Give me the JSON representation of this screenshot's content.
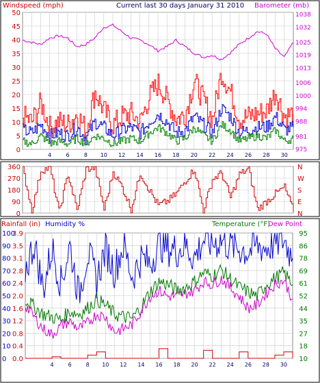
{
  "title": "Current last 30 days January 31 2010",
  "header": {
    "windspeed": "Windspeed (mph)",
    "barometer": "Barometer (mb)"
  },
  "panel3_header": {
    "rainfall": "Rainfall (in)",
    "humidity": "Humidity %",
    "temperature": "Temperature (°F)",
    "dewpoint": "Dew Point"
  },
  "colors": {
    "windspeed": "#ff0000",
    "gust": "#cc0000",
    "wind_avg": "#0000cc",
    "wind_low": "#008000",
    "barometer": "#cc00cc",
    "humidity": "#0000cc",
    "temperature": "#007700",
    "dewpoint": "#cc00cc",
    "rainfall": "#cc0000",
    "direction": "#cc0000",
    "grid": "#c8c8c8",
    "axis_text": "#000066"
  },
  "chart_data": [
    {
      "type": "line",
      "panel": "wind-barometer",
      "x_ticks": [
        4,
        6,
        8,
        10,
        12,
        14,
        16,
        18,
        20,
        22,
        24,
        26,
        28,
        30
      ],
      "xlim": [
        1,
        31
      ],
      "left_axis": {
        "label": "Windspeed (mph)",
        "ylim": [
          0,
          50
        ],
        "ticks": [
          0,
          5,
          10,
          15,
          20,
          25,
          30,
          35,
          40,
          45,
          50
        ]
      },
      "right_axis": {
        "label": "Barometer (mb)",
        "ylim": [
          975,
          1039
        ],
        "ticks": [
          975,
          981,
          988,
          994,
          1000,
          1006,
          1013,
          1019,
          1025,
          1032,
          1038
        ]
      },
      "series": [
        {
          "name": "Barometer (mb)",
          "axis": "right",
          "x": [
            1,
            2,
            3,
            4,
            5,
            6,
            7,
            8,
            9,
            10,
            11,
            12,
            13,
            14,
            15,
            16,
            17,
            18,
            19,
            20,
            21,
            22,
            23,
            24,
            25,
            26,
            27,
            28,
            29,
            30,
            31
          ],
          "values": [
            1026,
            1025,
            1024,
            1027,
            1028,
            1027,
            1023,
            1024,
            1027,
            1032,
            1033,
            1030,
            1027,
            1026,
            1024,
            1021,
            1023,
            1026,
            1023,
            1020,
            1018,
            1019,
            1017,
            1020,
            1024,
            1027,
            1030,
            1029,
            1022,
            1018,
            1025
          ]
        },
        {
          "name": "Windspeed",
          "axis": "left",
          "x": [
            1,
            2,
            3,
            4,
            5,
            6,
            7,
            8,
            9,
            10,
            11,
            12,
            13,
            14,
            15,
            16,
            17,
            18,
            19,
            20,
            21,
            22,
            23,
            24,
            25,
            26,
            27,
            28,
            29,
            30,
            31
          ],
          "values": [
            12,
            10,
            17,
            8,
            10,
            9,
            13,
            7,
            21,
            14,
            9,
            12,
            13,
            10,
            19,
            24,
            18,
            11,
            13,
            25,
            18,
            11,
            28,
            21,
            11,
            12,
            13,
            14,
            21,
            12,
            13
          ]
        },
        {
          "name": "Wind average",
          "axis": "left",
          "x": [
            1,
            2,
            3,
            4,
            5,
            6,
            7,
            8,
            9,
            10,
            11,
            12,
            13,
            14,
            15,
            16,
            17,
            18,
            19,
            20,
            21,
            22,
            23,
            24,
            25,
            26,
            27,
            28,
            29,
            30,
            31
          ],
          "values": [
            7,
            6,
            9,
            5,
            6,
            5,
            8,
            4,
            10,
            8,
            5,
            7,
            8,
            6,
            10,
            13,
            10,
            6,
            7,
            12,
            9,
            6,
            15,
            12,
            6,
            7,
            8,
            8,
            12,
            7,
            8
          ]
        },
        {
          "name": "Wind low",
          "axis": "left",
          "x": [
            1,
            2,
            3,
            4,
            5,
            6,
            7,
            8,
            9,
            10,
            11,
            12,
            13,
            14,
            15,
            16,
            17,
            18,
            19,
            20,
            21,
            22,
            23,
            24,
            25,
            26,
            27,
            28,
            29,
            30,
            31
          ],
          "values": [
            3,
            2,
            5,
            2,
            3,
            2,
            4,
            2,
            5,
            4,
            2,
            3,
            4,
            3,
            6,
            8,
            6,
            3,
            4,
            8,
            5,
            3,
            9,
            7,
            3,
            4,
            5,
            4,
            7,
            3,
            4
          ]
        }
      ]
    },
    {
      "type": "line",
      "panel": "wind-direction",
      "xlim": [
        1,
        31
      ],
      "ylim": [
        0,
        360
      ],
      "left_ticks": [
        0,
        90,
        180,
        270,
        360
      ],
      "right_labels": [
        "N",
        "W",
        "S",
        "E",
        "N"
      ],
      "series": [
        {
          "name": "Wind direction",
          "x": [
            1,
            2,
            3,
            4,
            5,
            6,
            7,
            8,
            9,
            10,
            11,
            12,
            13,
            14,
            15,
            16,
            17,
            18,
            19,
            20,
            21,
            22,
            23,
            24,
            25,
            26,
            27,
            28,
            29,
            30,
            31
          ],
          "values": [
            340,
            20,
            330,
            350,
            10,
            300,
            20,
            340,
            350,
            30,
            320,
            200,
            30,
            310,
            180,
            60,
            90,
            150,
            250,
            340,
            20,
            260,
            310,
            120,
            300,
            340,
            30,
            90,
            150,
            200,
            10
          ]
        }
      ]
    },
    {
      "type": "line",
      "panel": "rain-humidity-temperature",
      "x_ticks": [
        4,
        6,
        8,
        10,
        12,
        14,
        16,
        18,
        20,
        22,
        24,
        26,
        28,
        30
      ],
      "xlim": [
        1,
        31
      ],
      "left_axis": {
        "label": "Rainfall (in)",
        "ylim": [
          0,
          3.9
        ],
        "ticks": [
          0.0,
          0.4,
          0.8,
          1.2,
          1.6,
          2.0,
          2.4,
          2.8,
          3.1,
          3.5,
          3.9
        ]
      },
      "humidity_axis": {
        "label": "Humidity %",
        "ylim": [
          0,
          100
        ],
        "ticks": [
          0,
          10,
          20,
          30,
          40,
          50,
          60,
          70,
          80,
          90,
          100
        ]
      },
      "right_axis": {
        "label": "Temperature (°F)",
        "ylim": [
          10,
          95
        ],
        "ticks": [
          10,
          18,
          27,
          35,
          44,
          52,
          61,
          69,
          78,
          86,
          95
        ]
      },
      "series": [
        {
          "name": "Humidity %",
          "axis": "humidity",
          "x": [
            1,
            2,
            3,
            4,
            5,
            6,
            7,
            8,
            9,
            10,
            11,
            12,
            13,
            14,
            15,
            16,
            17,
            18,
            19,
            20,
            21,
            22,
            23,
            24,
            25,
            26,
            27,
            28,
            29,
            30,
            31
          ],
          "values": [
            70,
            92,
            55,
            88,
            60,
            90,
            50,
            85,
            62,
            88,
            70,
            90,
            65,
            80,
            75,
            92,
            88,
            86,
            90,
            80,
            95,
            92,
            94,
            90,
            88,
            85,
            90,
            88,
            92,
            95,
            80
          ]
        },
        {
          "name": "Temperature (°F)",
          "axis": "right",
          "x": [
            1,
            2,
            3,
            4,
            5,
            6,
            7,
            8,
            9,
            10,
            11,
            12,
            13,
            14,
            15,
            16,
            17,
            18,
            19,
            20,
            21,
            22,
            23,
            24,
            25,
            26,
            27,
            28,
            29,
            30,
            31
          ],
          "values": [
            50,
            45,
            40,
            38,
            36,
            42,
            40,
            44,
            50,
            46,
            40,
            38,
            37,
            45,
            55,
            62,
            60,
            56,
            58,
            62,
            68,
            66,
            70,
            64,
            58,
            55,
            52,
            60,
            64,
            68,
            60
          ]
        },
        {
          "name": "Dew Point",
          "axis": "right",
          "x": [
            1,
            2,
            3,
            4,
            5,
            6,
            7,
            8,
            9,
            10,
            11,
            12,
            13,
            14,
            15,
            16,
            17,
            18,
            19,
            20,
            21,
            22,
            23,
            24,
            25,
            26,
            27,
            28,
            29,
            30,
            31
          ],
          "values": [
            46,
            38,
            30,
            26,
            32,
            35,
            30,
            34,
            40,
            38,
            28,
            30,
            33,
            42,
            52,
            56,
            52,
            52,
            54,
            56,
            62,
            60,
            64,
            58,
            52,
            44,
            46,
            54,
            60,
            63,
            50
          ]
        },
        {
          "name": "Rainfall (in)",
          "axis": "left",
          "x": [
            1,
            2,
            3,
            4,
            5,
            6,
            7,
            8,
            9,
            10,
            11,
            12,
            13,
            14,
            15,
            16,
            17,
            18,
            19,
            20,
            21,
            22,
            23,
            24,
            25,
            26,
            27,
            28,
            29,
            30,
            31
          ],
          "values": [
            0.0,
            0.0,
            0.0,
            0.05,
            0.0,
            0.0,
            0.0,
            0.1,
            0.2,
            0.0,
            0.0,
            0.0,
            0.0,
            0.0,
            0.0,
            0.3,
            0.0,
            0.0,
            0.0,
            0.0,
            0.25,
            0.0,
            0.0,
            0.0,
            0.2,
            0.0,
            0.0,
            0.0,
            0.1,
            0.2,
            0.0
          ]
        }
      ]
    }
  ]
}
